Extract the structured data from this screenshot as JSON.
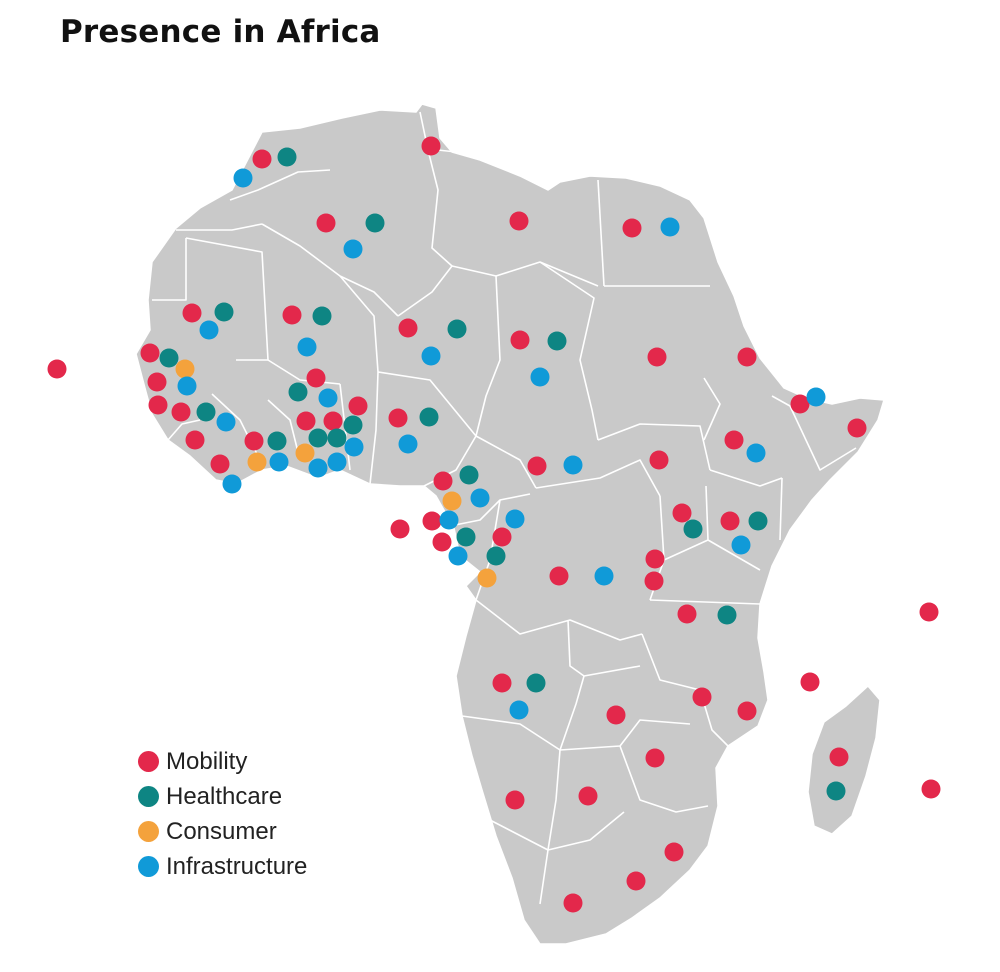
{
  "title": "Presence in Africa",
  "colors": {
    "Mobility": "#e3284b",
    "Healthcare": "#0e8583",
    "Consumer": "#f4a23c",
    "Infrastructure": "#109ad8"
  },
  "legend": [
    {
      "key": "Mobility",
      "label": "Mobility"
    },
    {
      "key": "Healthcare",
      "label": "Healthcare"
    },
    {
      "key": "Consumer",
      "label": "Consumer"
    },
    {
      "key": "Infrastructure",
      "label": "Infrastructure"
    }
  ]
}
